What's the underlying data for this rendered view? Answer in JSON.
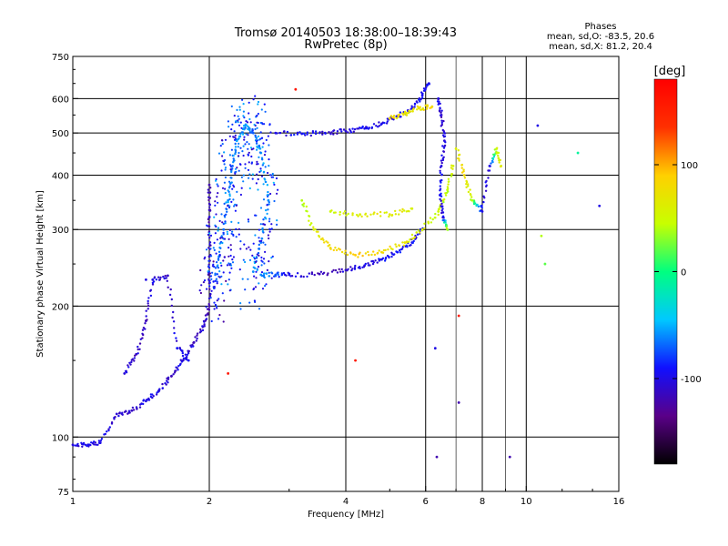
{
  "header": {
    "title_line1": "Tromsø 20140503 18:38:00–18:39:43",
    "title_line2": "RwPretec (8p)"
  },
  "stats": {
    "heading": "Phases",
    "line_o": "mean, sd,O: -83.5, 20.6",
    "line_x": "mean, sd,X:  81.2, 20.4"
  },
  "colorbar": {
    "label": "[deg]",
    "ticks": [
      {
        "value": 100,
        "label": "100"
      },
      {
        "value": 0,
        "label": "0"
      },
      {
        "value": -100,
        "label": "-100"
      }
    ],
    "range": [
      -180,
      180
    ],
    "stops": [
      "#000000",
      "#5a0088",
      "#1010ff",
      "#00c8ff",
      "#00ff80",
      "#c8ff00",
      "#ffd000",
      "#ff3000",
      "#ff0000"
    ]
  },
  "chart_data": {
    "type": "scatter",
    "title": "Tromsø 20140503 18:38:00–18:39:43",
    "subtitle": "RwPretec (8p)",
    "xlabel": "Frequency [MHz]",
    "ylabel": "Stationary phase Virtual Height [km]",
    "xscale": "log",
    "yscale": "log",
    "xlim": [
      1,
      16
    ],
    "ylim": [
      75,
      750
    ],
    "xticks": [
      1,
      2,
      4,
      6,
      8,
      10,
      16
    ],
    "xtick_labels": [
      "1",
      "2",
      "4",
      "6",
      "8",
      "10",
      "16"
    ],
    "xgrid_major": [
      2,
      4,
      6,
      8,
      10
    ],
    "xgrid_minor": [
      7,
      9
    ],
    "yticks": [
      75,
      100,
      200,
      300,
      400,
      500,
      600,
      750
    ],
    "ytick_labels": [
      "75",
      "100",
      "200",
      "300",
      "400",
      "500",
      "600",
      "750"
    ],
    "ygrid": [
      100,
      200,
      300,
      400,
      500,
      600
    ],
    "grid": true,
    "color_by": "phase_deg",
    "series": [
      {
        "values": [
          [
            1.0,
            96,
            -105
          ],
          [
            1.08,
            96,
            -100
          ],
          [
            1.15,
            97,
            -100
          ],
          [
            1.25,
            113,
            -105
          ],
          [
            1.35,
            115,
            -110
          ],
          [
            1.45,
            121,
            -100
          ],
          [
            1.55,
            128,
            -105
          ],
          [
            1.65,
            138,
            -110
          ],
          [
            1.75,
            150,
            -100
          ],
          [
            1.85,
            165,
            -110
          ],
          [
            1.95,
            180,
            -105
          ],
          [
            2.0,
            200,
            -120
          ],
          [
            2.0,
            260,
            -110
          ],
          [
            2.0,
            320,
            -115
          ],
          [
            2.0,
            380,
            -120
          ]
        ]
      },
      {
        "values": [
          [
            1.3,
            140,
            -105
          ],
          [
            1.38,
            155,
            -110
          ],
          [
            1.45,
            185,
            -115
          ],
          [
            1.5,
            230,
            -100
          ],
          [
            1.62,
            235,
            -110
          ],
          [
            1.7,
            160,
            -100
          ],
          [
            1.8,
            150,
            -95
          ]
        ]
      },
      {
        "values": [
          [
            2.05,
            220,
            -80
          ],
          [
            2.1,
            260,
            -60
          ],
          [
            2.15,
            300,
            -70
          ],
          [
            2.2,
            350,
            -60
          ],
          [
            2.25,
            420,
            -70
          ],
          [
            2.3,
            480,
            -55
          ],
          [
            2.4,
            520,
            -60
          ],
          [
            2.5,
            500,
            -70
          ],
          [
            2.6,
            450,
            -55
          ],
          [
            2.7,
            350,
            -60
          ],
          [
            2.6,
            280,
            -65
          ],
          [
            2.5,
            240,
            -60
          ]
        ]
      },
      {
        "values": [
          [
            2.6,
            236,
            -60
          ],
          [
            2.8,
            236,
            -70
          ],
          [
            3.0,
            236,
            -100
          ],
          [
            3.5,
            237,
            -115
          ],
          [
            4.0,
            242,
            -110
          ],
          [
            4.4,
            248,
            -100
          ],
          [
            4.8,
            256,
            -95
          ],
          [
            5.2,
            266,
            -90
          ],
          [
            5.6,
            280,
            -95
          ],
          [
            5.9,
            300,
            -100
          ]
        ]
      },
      {
        "values": [
          [
            2.8,
            500,
            -100
          ],
          [
            3.2,
            498,
            -95
          ],
          [
            3.6,
            500,
            -100
          ],
          [
            4.0,
            505,
            -105
          ],
          [
            4.4,
            512,
            -100
          ],
          [
            4.8,
            525,
            -95
          ],
          [
            5.2,
            545,
            -100
          ],
          [
            5.6,
            570,
            -100
          ],
          [
            5.9,
            610,
            -95
          ],
          [
            6.1,
            650,
            -100
          ]
        ]
      },
      {
        "values": [
          [
            3.2,
            350,
            40
          ],
          [
            3.4,
            300,
            60
          ],
          [
            3.7,
            272,
            80
          ],
          [
            4.2,
            262,
            90
          ],
          [
            4.8,
            266,
            80
          ],
          [
            5.4,
            280,
            70
          ],
          [
            5.9,
            300,
            60
          ],
          [
            6.4,
            330,
            50
          ],
          [
            6.7,
            370,
            45
          ],
          [
            6.9,
            420,
            55
          ]
        ]
      },
      {
        "values": [
          [
            3.7,
            330,
            50
          ],
          [
            4.3,
            325,
            60
          ],
          [
            5.0,
            325,
            70
          ],
          [
            5.6,
            335,
            60
          ]
        ]
      },
      {
        "values": [
          [
            6.4,
            600,
            -100
          ],
          [
            6.5,
            550,
            -110
          ],
          [
            6.6,
            480,
            -105
          ],
          [
            6.5,
            420,
            -100
          ],
          [
            6.45,
            360,
            -95
          ],
          [
            6.55,
            320,
            -110
          ],
          [
            6.7,
            300,
            60
          ]
        ]
      },
      {
        "values": [
          [
            5.0,
            540,
            80
          ],
          [
            5.4,
            555,
            70
          ],
          [
            5.8,
            570,
            75
          ],
          [
            6.2,
            575,
            80
          ]
        ]
      },
      {
        "values": [
          [
            7.0,
            460,
            60
          ],
          [
            7.3,
            400,
            80
          ],
          [
            7.6,
            350,
            40
          ],
          [
            8.0,
            330,
            -100
          ],
          [
            8.3,
            420,
            -100
          ],
          [
            8.6,
            460,
            50
          ],
          [
            8.8,
            420,
            60
          ]
        ]
      },
      {
        "values": [
          [
            1.45,
            230,
            -100
          ],
          [
            2.2,
            140,
            160
          ],
          [
            3.1,
            630,
            160
          ],
          [
            4.2,
            150,
            160
          ],
          [
            6.3,
            160,
            -100
          ],
          [
            6.35,
            90,
            -120
          ],
          [
            7.1,
            190,
            160
          ],
          [
            7.1,
            120,
            -120
          ],
          [
            9.2,
            90,
            -120
          ],
          [
            10.6,
            520,
            -100
          ],
          [
            10.8,
            290,
            40
          ],
          [
            11.0,
            250,
            20
          ],
          [
            13.0,
            450,
            -10
          ],
          [
            14.5,
            340,
            -100
          ]
        ]
      }
    ]
  }
}
